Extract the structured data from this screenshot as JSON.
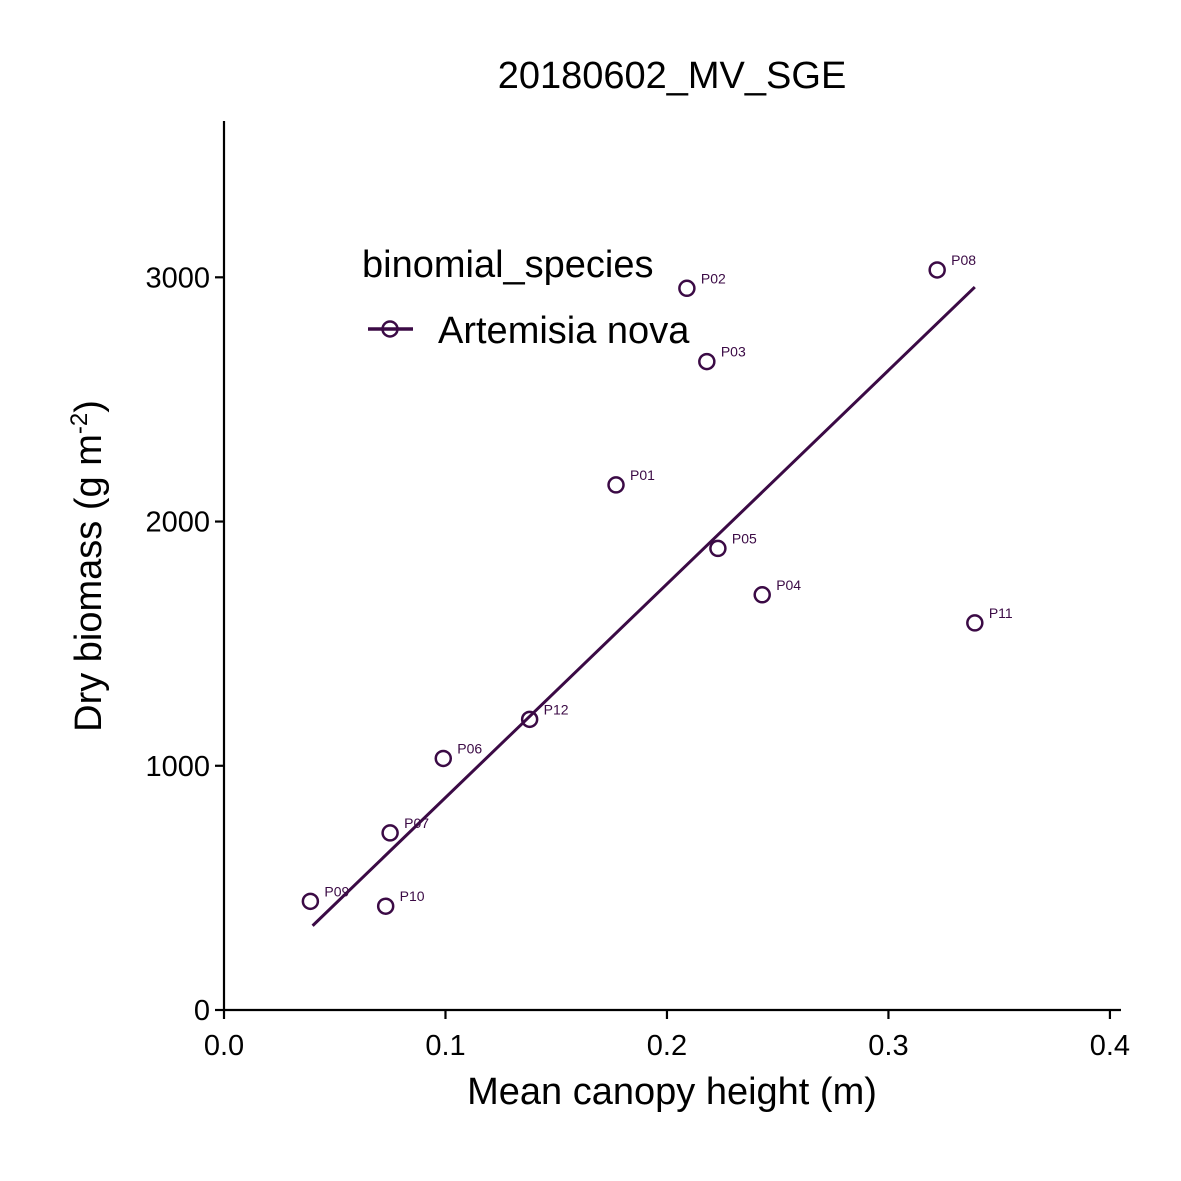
{
  "chart_data": {
    "type": "scatter",
    "title": "20180602_MV_SGE",
    "xlabel": "Mean canopy height (m)",
    "ylabel_main": "Dry biomass (g m",
    "ylabel_sup": "-2",
    "ylabel_close": ")",
    "xlim": [
      0.0,
      0.405
    ],
    "ylim": [
      0,
      3640
    ],
    "x_ticks": [
      0.0,
      0.1,
      0.2,
      0.3,
      0.4
    ],
    "x_tick_labels": [
      "0.0",
      "0.1",
      "0.2",
      "0.3",
      "0.4"
    ],
    "y_ticks": [
      0,
      1000,
      2000,
      3000
    ],
    "y_tick_labels": [
      "0",
      "1000",
      "2000",
      "3000"
    ],
    "grid": false,
    "legend": {
      "title": "binomial_species",
      "placement": "top-left",
      "entries": [
        "Artemisia nova"
      ]
    },
    "series": [
      {
        "name": "Artemisia nova",
        "color": "#3b0a45",
        "points": [
          {
            "label": "P01",
            "x": 0.177,
            "y": 2150
          },
          {
            "label": "P02",
            "x": 0.209,
            "y": 2955
          },
          {
            "label": "P03",
            "x": 0.218,
            "y": 2655
          },
          {
            "label": "P04",
            "x": 0.243,
            "y": 1700
          },
          {
            "label": "P05",
            "x": 0.223,
            "y": 1890
          },
          {
            "label": "P06",
            "x": 0.099,
            "y": 1030
          },
          {
            "label": "P07",
            "x": 0.075,
            "y": 725
          },
          {
            "label": "P08",
            "x": 0.322,
            "y": 3030
          },
          {
            "label": "P09",
            "x": 0.039,
            "y": 445
          },
          {
            "label": "P10",
            "x": 0.073,
            "y": 425
          },
          {
            "label": "P11",
            "x": 0.339,
            "y": 1585
          },
          {
            "label": "P12",
            "x": 0.138,
            "y": 1190
          }
        ],
        "fit_line": {
          "x": [
            0.04,
            0.339
          ],
          "y": [
            345,
            2960
          ]
        }
      }
    ]
  }
}
